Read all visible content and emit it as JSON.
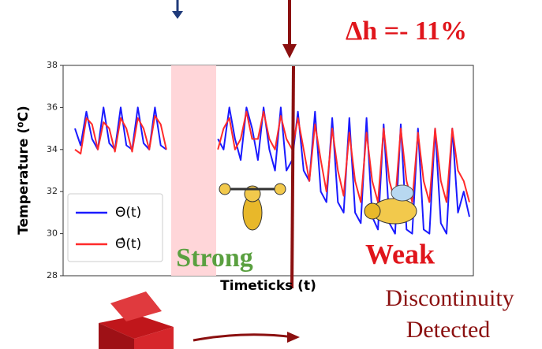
{
  "chart_data": {
    "type": "line",
    "y_label": "Temperature (⁰C)",
    "x_label": "Timeticks (t)",
    "ylim": [
      28,
      38
    ],
    "yticks": [
      28,
      30,
      32,
      34,
      36,
      38
    ],
    "legend": "bottom-left",
    "series": [
      {
        "name": "Θ(t)",
        "color": "#1a1aff",
        "values": [
          35,
          34.2,
          35.8,
          34.5,
          34,
          36,
          34.3,
          34,
          36,
          34.2,
          34,
          36,
          34.3,
          34,
          36,
          34.2,
          34,
          null,
          null,
          null,
          null,
          null,
          null,
          null,
          null,
          34.5,
          34,
          36,
          34.5,
          33.5,
          36,
          35,
          33.5,
          36,
          34,
          33,
          36,
          33,
          33.5,
          35.8,
          33,
          32.5,
          35.8,
          32,
          31.5,
          35.5,
          31.5,
          31,
          35.5,
          31,
          30.5,
          35.5,
          30.8,
          30.2,
          35.2,
          30.5,
          30,
          35.2,
          30.2,
          30,
          35,
          30.2,
          30,
          35,
          30.5,
          30,
          35,
          31,
          32,
          30.8
        ]
      },
      {
        "name": "Θ̂(t)",
        "color": "#ff2a2a",
        "values": [
          34,
          33.8,
          35.5,
          35.2,
          34,
          35.3,
          35,
          33.9,
          35.5,
          35,
          33.9,
          35.5,
          35,
          34,
          35.6,
          35.2,
          34,
          null,
          null,
          null,
          null,
          null,
          null,
          null,
          null,
          34,
          35,
          35.5,
          34,
          34.5,
          35.8,
          34.5,
          34.5,
          35.8,
          34.5,
          34,
          35.6,
          34.5,
          34,
          35.5,
          34,
          32.5,
          35.2,
          33.5,
          32,
          35,
          33,
          31.8,
          34.8,
          32.5,
          31.5,
          34.8,
          32.5,
          31.5,
          35,
          32.5,
          31.5,
          35,
          32.5,
          31.5,
          34.8,
          32.5,
          31.5,
          35,
          32.5,
          31.5,
          35,
          33,
          32.5,
          31.5
        ]
      }
    ],
    "annotations": [
      "Δh =- 11%",
      "Strong",
      "Weak",
      "Discontinuity",
      "Detected"
    ]
  }
}
